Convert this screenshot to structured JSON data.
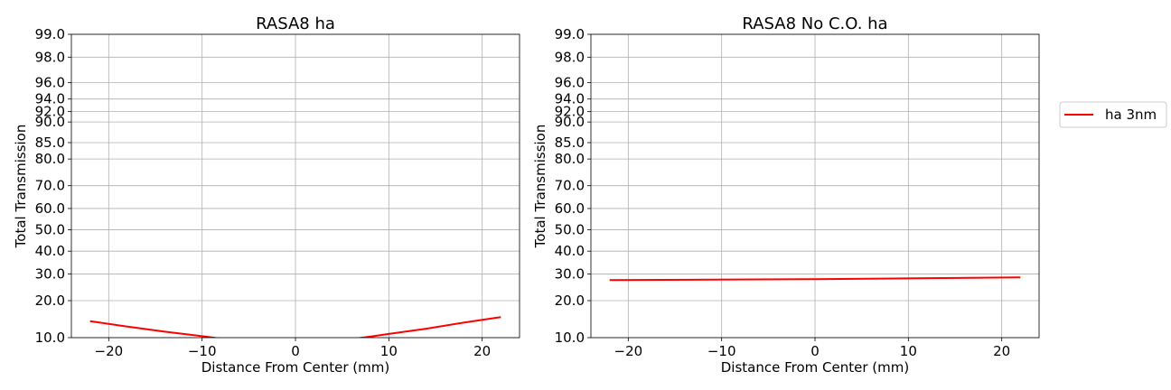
{
  "chart_data": [
    {
      "type": "line",
      "title": "RASA8 ha",
      "xlabel": "Distance From Center (mm)",
      "ylabel": "Total Transmission",
      "xlim": [
        -24,
        24
      ],
      "ylim": [
        10,
        99
      ],
      "yscale": "probability (normal-quantile)",
      "grid": true,
      "xticks": [
        -20,
        -10,
        0,
        10,
        20
      ],
      "xtick_labels": [
        "−20",
        "−10",
        "0",
        "10",
        "20"
      ],
      "yticks": [
        10,
        20,
        30,
        40,
        50,
        60,
        70,
        80,
        85,
        90,
        92,
        94,
        96,
        98,
        99
      ],
      "ytick_labels": [
        "10.0",
        "20.0",
        "30.0",
        "40.0",
        "50.0",
        "60.0",
        "70.0",
        "80.0",
        "85.0",
        "90.0",
        "92.0",
        "94.0",
        "96.0",
        "98.0",
        "99.0"
      ],
      "series": [
        {
          "name": "ha 3nm",
          "color": "#ff0000",
          "x": [
            -22,
            -18,
            -14,
            -10,
            -8,
            -6,
            -4,
            -2,
            0,
            2,
            4,
            6,
            8,
            10,
            14,
            18,
            22
          ],
          "y": [
            13.9,
            12.5,
            11.3,
            10.3,
            9.8,
            9.5,
            9.2,
            9.1,
            9.0,
            9.1,
            9.3,
            9.7,
            10.2,
            10.8,
            12.0,
            13.5,
            15.0
          ]
        }
      ]
    },
    {
      "type": "line",
      "title": "RASA8 No C.O. ha",
      "xlabel": "Distance From Center (mm)",
      "ylabel": "Total Transmission",
      "xlim": [
        -24,
        24
      ],
      "ylim": [
        10,
        99
      ],
      "yscale": "probability (normal-quantile)",
      "grid": true,
      "xticks": [
        -20,
        -10,
        0,
        10,
        20
      ],
      "xtick_labels": [
        "−20",
        "−10",
        "0",
        "10",
        "20"
      ],
      "yticks": [
        10,
        20,
        30,
        40,
        50,
        60,
        70,
        80,
        85,
        90,
        92,
        94,
        96,
        98,
        99
      ],
      "ytick_labels": [
        "10.0",
        "20.0",
        "30.0",
        "40.0",
        "50.0",
        "60.0",
        "70.0",
        "80.0",
        "85.0",
        "90.0",
        "92.0",
        "94.0",
        "96.0",
        "98.0",
        "99.0"
      ],
      "legend": {
        "placement": "outside-right",
        "entries": [
          "ha 3nm"
        ]
      },
      "series": [
        {
          "name": "ha 3nm",
          "color": "#ff0000",
          "x": [
            -22,
            -11,
            0,
            11,
            22
          ],
          "y": [
            27.5,
            27.7,
            27.9,
            28.2,
            28.6
          ]
        }
      ]
    }
  ]
}
